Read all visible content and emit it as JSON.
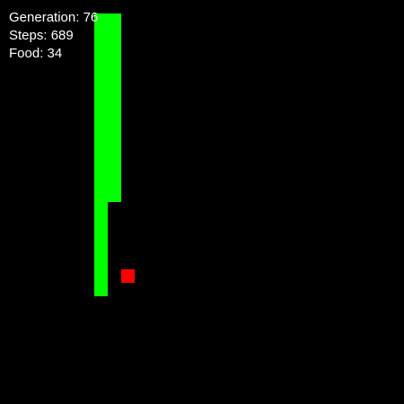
{
  "hud": {
    "generation_label": "Generation:",
    "generation_value": "76",
    "steps_label": "Steps:",
    "steps_value": "689",
    "food_label": "Food:",
    "food_value": "34"
  },
  "colors": {
    "background": "#000000",
    "snake": "#00ff00",
    "food": "#ff0000",
    "hud_text": "#ffffff"
  }
}
